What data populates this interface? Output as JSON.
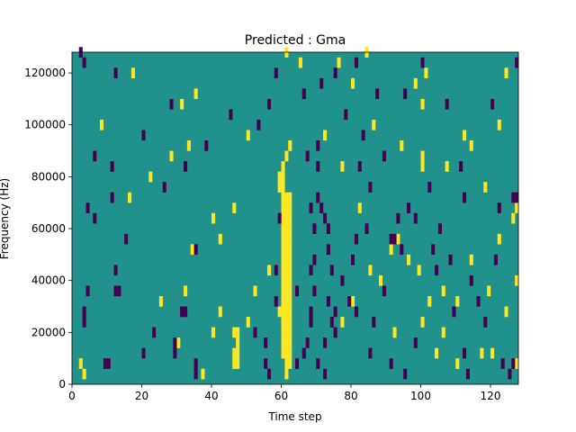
{
  "chart_data": {
    "type": "heatmap",
    "title": "Predicted : Gma",
    "xlabel": "Time step",
    "ylabel": "Frequency (Hz)",
    "xlim": [
      0,
      128
    ],
    "ylim": [
      0,
      128000
    ],
    "x_ticks": [
      0,
      20,
      40,
      60,
      80,
      100,
      120
    ],
    "y_ticks": [
      0,
      20000,
      40000,
      60000,
      80000,
      100000,
      120000
    ],
    "x_tick_labels": [
      "0",
      "20",
      "40",
      "60",
      "80",
      "100",
      "120"
    ],
    "y_tick_labels": [
      "0",
      "20000",
      "40000",
      "60000",
      "80000",
      "100000",
      "120000"
    ],
    "grid": false,
    "colormap": "viridis",
    "cell_height_hz": 4000,
    "values_legend": {
      "-1": "#440154",
      "0": "#21918c",
      "1": "#fde725"
    },
    "background_value": 0,
    "cells_high": [
      [
        60,
        30000,
        1
      ],
      [
        61,
        30000,
        1
      ],
      [
        62,
        30000,
        1
      ],
      [
        60,
        34000,
        1
      ],
      [
        61,
        34000,
        1
      ],
      [
        62,
        34000,
        1
      ],
      [
        60,
        38000,
        1
      ],
      [
        61,
        38000,
        1
      ],
      [
        62,
        38000,
        1
      ],
      [
        60,
        42000,
        1
      ],
      [
        61,
        42000,
        1
      ],
      [
        62,
        42000,
        1
      ],
      [
        60,
        46000,
        1
      ],
      [
        61,
        46000,
        1
      ],
      [
        62,
        46000,
        1
      ],
      [
        60,
        50000,
        1
      ],
      [
        61,
        50000,
        1
      ],
      [
        62,
        50000,
        1
      ],
      [
        60,
        54000,
        1
      ],
      [
        61,
        54000,
        1
      ],
      [
        62,
        54000,
        1
      ],
      [
        60,
        58000,
        1
      ],
      [
        61,
        58000,
        1
      ],
      [
        62,
        58000,
        1
      ],
      [
        60,
        62000,
        1
      ],
      [
        61,
        62000,
        1
      ],
      [
        62,
        62000,
        1
      ],
      [
        60,
        66000,
        1
      ],
      [
        61,
        66000,
        1
      ],
      [
        62,
        66000,
        1
      ],
      [
        60,
        70000,
        1
      ],
      [
        61,
        70000,
        1
      ],
      [
        62,
        70000,
        1
      ],
      [
        59,
        74000,
        1
      ],
      [
        60,
        74000,
        1
      ],
      [
        59,
        78000,
        1
      ],
      [
        60,
        78000,
        1
      ],
      [
        60,
        82000,
        1
      ],
      [
        61,
        86000,
        1
      ],
      [
        62,
        90000,
        1
      ],
      [
        59,
        26000,
        1
      ],
      [
        60,
        26000,
        1
      ],
      [
        61,
        26000,
        1
      ],
      [
        62,
        26000,
        1
      ],
      [
        60,
        22000,
        1
      ],
      [
        61,
        22000,
        1
      ],
      [
        62,
        22000,
        1
      ],
      [
        60,
        18000,
        1
      ],
      [
        61,
        18000,
        1
      ],
      [
        62,
        18000,
        1
      ],
      [
        60,
        14000,
        1
      ],
      [
        61,
        14000,
        1
      ],
      [
        62,
        14000,
        1
      ],
      [
        60,
        10000,
        1
      ],
      [
        61,
        10000,
        1
      ],
      [
        62,
        10000,
        1
      ],
      [
        61,
        6000,
        1
      ],
      [
        62,
        6000,
        1
      ],
      [
        61,
        2000,
        1
      ],
      [
        46,
        6000,
        1
      ],
      [
        47,
        6000,
        1
      ],
      [
        46,
        10000,
        1
      ],
      [
        47,
        10000,
        1
      ],
      [
        47,
        14000,
        1
      ],
      [
        47,
        18000,
        1
      ],
      [
        46,
        18000,
        1
      ],
      [
        3,
        2000,
        1
      ],
      [
        2,
        6000,
        1
      ],
      [
        37,
        2000,
        1
      ],
      [
        30,
        14000,
        1
      ],
      [
        40,
        18000,
        1
      ],
      [
        42,
        26000,
        1
      ],
      [
        50,
        22000,
        1
      ],
      [
        25,
        30000,
        1
      ],
      [
        32,
        34000,
        1
      ],
      [
        52,
        34000,
        1
      ],
      [
        56,
        42000,
        1
      ],
      [
        34,
        50000,
        1
      ],
      [
        42,
        54000,
        1
      ],
      [
        40,
        62000,
        1
      ],
      [
        46,
        66000,
        1
      ],
      [
        16,
        70000,
        1
      ],
      [
        22,
        78000,
        1
      ],
      [
        28,
        86000,
        1
      ],
      [
        33,
        90000,
        1
      ],
      [
        50,
        94000,
        1
      ],
      [
        8,
        98000,
        1
      ],
      [
        31,
        106000,
        1
      ],
      [
        35,
        110000,
        1
      ],
      [
        17,
        118000,
        1
      ],
      [
        61,
        126000,
        1
      ],
      [
        65,
        122000,
        1
      ],
      [
        76,
        122000,
        1
      ],
      [
        84,
        126000,
        1
      ],
      [
        80,
        114000,
        1
      ],
      [
        98,
        114000,
        1
      ],
      [
        100,
        106000,
        1
      ],
      [
        86,
        98000,
        1
      ],
      [
        94,
        90000,
        1
      ],
      [
        100,
        86000,
        1
      ],
      [
        100,
        82000,
        1
      ],
      [
        72,
        94000,
        1
      ],
      [
        77,
        82000,
        1
      ],
      [
        82,
        66000,
        1
      ],
      [
        91,
        50000,
        1
      ],
      [
        93,
        54000,
        1
      ],
      [
        96,
        46000,
        1
      ],
      [
        99,
        42000,
        1
      ],
      [
        106,
        34000,
        1
      ],
      [
        102,
        30000,
        1
      ],
      [
        100,
        22000,
        1
      ],
      [
        106,
        18000,
        1
      ],
      [
        104,
        10000,
        1
      ],
      [
        110,
        6000,
        1
      ],
      [
        117,
        10000,
        1
      ],
      [
        127,
        6000,
        1
      ],
      [
        120,
        10000,
        1
      ],
      [
        88,
        38000,
        1
      ],
      [
        80,
        30000,
        1
      ],
      [
        77,
        22000,
        1
      ],
      [
        92,
        18000,
        1
      ],
      [
        119,
        34000,
        1
      ],
      [
        127,
        38000,
        1
      ],
      [
        114,
        46000,
        1
      ],
      [
        122,
        54000,
        1
      ],
      [
        126,
        62000,
        1
      ],
      [
        127,
        66000,
        1
      ],
      [
        118,
        74000,
        1
      ],
      [
        114,
        90000,
        1
      ],
      [
        112,
        94000,
        1
      ],
      [
        107,
        82000,
        1
      ],
      [
        122,
        98000,
        1
      ],
      [
        124,
        118000,
        1
      ],
      [
        101,
        118000,
        1
      ],
      [
        85,
        42000,
        1
      ],
      [
        110,
        30000,
        1
      ],
      [
        124,
        26000,
        1
      ]
    ],
    "cells_low": [
      [
        2,
        126000,
        -1
      ],
      [
        3,
        122000,
        -1
      ],
      [
        12,
        118000,
        -1
      ],
      [
        28,
        106000,
        -1
      ],
      [
        20,
        94000,
        -1
      ],
      [
        38,
        90000,
        -1
      ],
      [
        6,
        86000,
        -1
      ],
      [
        11,
        82000,
        -1
      ],
      [
        32,
        82000,
        -1
      ],
      [
        26,
        74000,
        -1
      ],
      [
        11,
        70000,
        -1
      ],
      [
        4,
        66000,
        -1
      ],
      [
        6,
        62000,
        -1
      ],
      [
        15,
        54000,
        -1
      ],
      [
        35,
        50000,
        -1
      ],
      [
        12,
        42000,
        -1
      ],
      [
        4,
        34000,
        -1
      ],
      [
        12,
        34000,
        -1
      ],
      [
        13,
        34000,
        -1
      ],
      [
        3,
        26000,
        -1
      ],
      [
        3,
        22000,
        -1
      ],
      [
        31,
        26000,
        -1
      ],
      [
        32,
        26000,
        -1
      ],
      [
        23,
        18000,
        -1
      ],
      [
        20,
        10000,
        -1
      ],
      [
        29,
        14000,
        -1
      ],
      [
        29,
        10000,
        -1
      ],
      [
        9,
        6000,
        -1
      ],
      [
        10,
        6000,
        -1
      ],
      [
        35,
        2000,
        -1
      ],
      [
        35,
        6000,
        -1
      ],
      [
        58,
        42000,
        -1
      ],
      [
        58,
        30000,
        -1
      ],
      [
        55,
        14000,
        -1
      ],
      [
        55,
        6000,
        -1
      ],
      [
        56,
        2000,
        -1
      ],
      [
        52,
        18000,
        -1
      ],
      [
        59,
        62000,
        -1
      ],
      [
        64,
        6000,
        -1
      ],
      [
        66,
        10000,
        -1
      ],
      [
        67,
        14000,
        -1
      ],
      [
        68,
        22000,
        -1
      ],
      [
        68,
        26000,
        -1
      ],
      [
        69,
        34000,
        -1
      ],
      [
        68,
        42000,
        -1
      ],
      [
        69,
        46000,
        -1
      ],
      [
        69,
        58000,
        -1
      ],
      [
        68,
        66000,
        -1
      ],
      [
        70,
        70000,
        -1
      ],
      [
        70,
        82000,
        -1
      ],
      [
        67,
        86000,
        -1
      ],
      [
        70,
        90000,
        -1
      ],
      [
        71,
        66000,
        -1
      ],
      [
        72,
        62000,
        -1
      ],
      [
        73,
        58000,
        -1
      ],
      [
        73,
        50000,
        -1
      ],
      [
        74,
        42000,
        -1
      ],
      [
        73,
        30000,
        -1
      ],
      [
        74,
        22000,
        -1
      ],
      [
        75,
        26000,
        -1
      ],
      [
        75,
        18000,
        -1
      ],
      [
        72,
        14000,
        -1
      ],
      [
        70,
        6000,
        -1
      ],
      [
        72,
        2000,
        -1
      ],
      [
        79,
        30000,
        -1
      ],
      [
        80,
        46000,
        -1
      ],
      [
        81,
        54000,
        -1
      ],
      [
        84,
        58000,
        -1
      ],
      [
        82,
        82000,
        -1
      ],
      [
        83,
        94000,
        -1
      ],
      [
        89,
        86000,
        -1
      ],
      [
        91,
        54000,
        -1
      ],
      [
        92,
        54000,
        -1
      ],
      [
        86,
        22000,
        -1
      ],
      [
        91,
        6000,
        -1
      ],
      [
        95,
        2000,
        -1
      ],
      [
        98,
        14000,
        -1
      ],
      [
        104,
        42000,
        -1
      ],
      [
        98,
        62000,
        -1
      ],
      [
        96,
        66000,
        -1
      ],
      [
        93,
        62000,
        -1
      ],
      [
        102,
        74000,
        -1
      ],
      [
        105,
        58000,
        -1
      ],
      [
        111,
        82000,
        -1
      ],
      [
        112,
        70000,
        -1
      ],
      [
        114,
        38000,
        -1
      ],
      [
        112,
        10000,
        -1
      ],
      [
        113,
        2000,
        -1
      ],
      [
        123,
        6000,
        -1
      ],
      [
        125,
        2000,
        -1
      ],
      [
        126,
        6000,
        -1
      ],
      [
        127,
        70000,
        -1
      ],
      [
        126,
        70000,
        -1
      ],
      [
        122,
        66000,
        -1
      ],
      [
        121,
        46000,
        -1
      ],
      [
        118,
        22000,
        -1
      ],
      [
        109,
        26000,
        -1
      ],
      [
        127,
        122000,
        -1
      ],
      [
        120,
        106000,
        -1
      ],
      [
        116,
        30000,
        -1
      ],
      [
        107,
        106000,
        -1
      ],
      [
        100,
        122000,
        -1
      ],
      [
        95,
        110000,
        -1
      ],
      [
        87,
        110000,
        -1
      ],
      [
        81,
        122000,
        -1
      ],
      [
        75,
        118000,
        -1
      ],
      [
        71,
        114000,
        -1
      ],
      [
        66,
        110000,
        -1
      ],
      [
        58,
        118000,
        -1
      ],
      [
        56,
        106000,
        -1
      ],
      [
        53,
        98000,
        -1
      ],
      [
        45,
        102000,
        -1
      ],
      [
        78,
        102000,
        -1
      ],
      [
        85,
        74000,
        -1
      ],
      [
        89,
        34000,
        -1
      ],
      [
        64,
        34000,
        -1
      ],
      [
        77,
        38000,
        -1
      ],
      [
        81,
        26000,
        -1
      ],
      [
        85,
        10000,
        -1
      ],
      [
        108,
        46000,
        -1
      ],
      [
        103,
        50000,
        -1
      ],
      [
        94,
        50000,
        -1
      ]
    ]
  }
}
